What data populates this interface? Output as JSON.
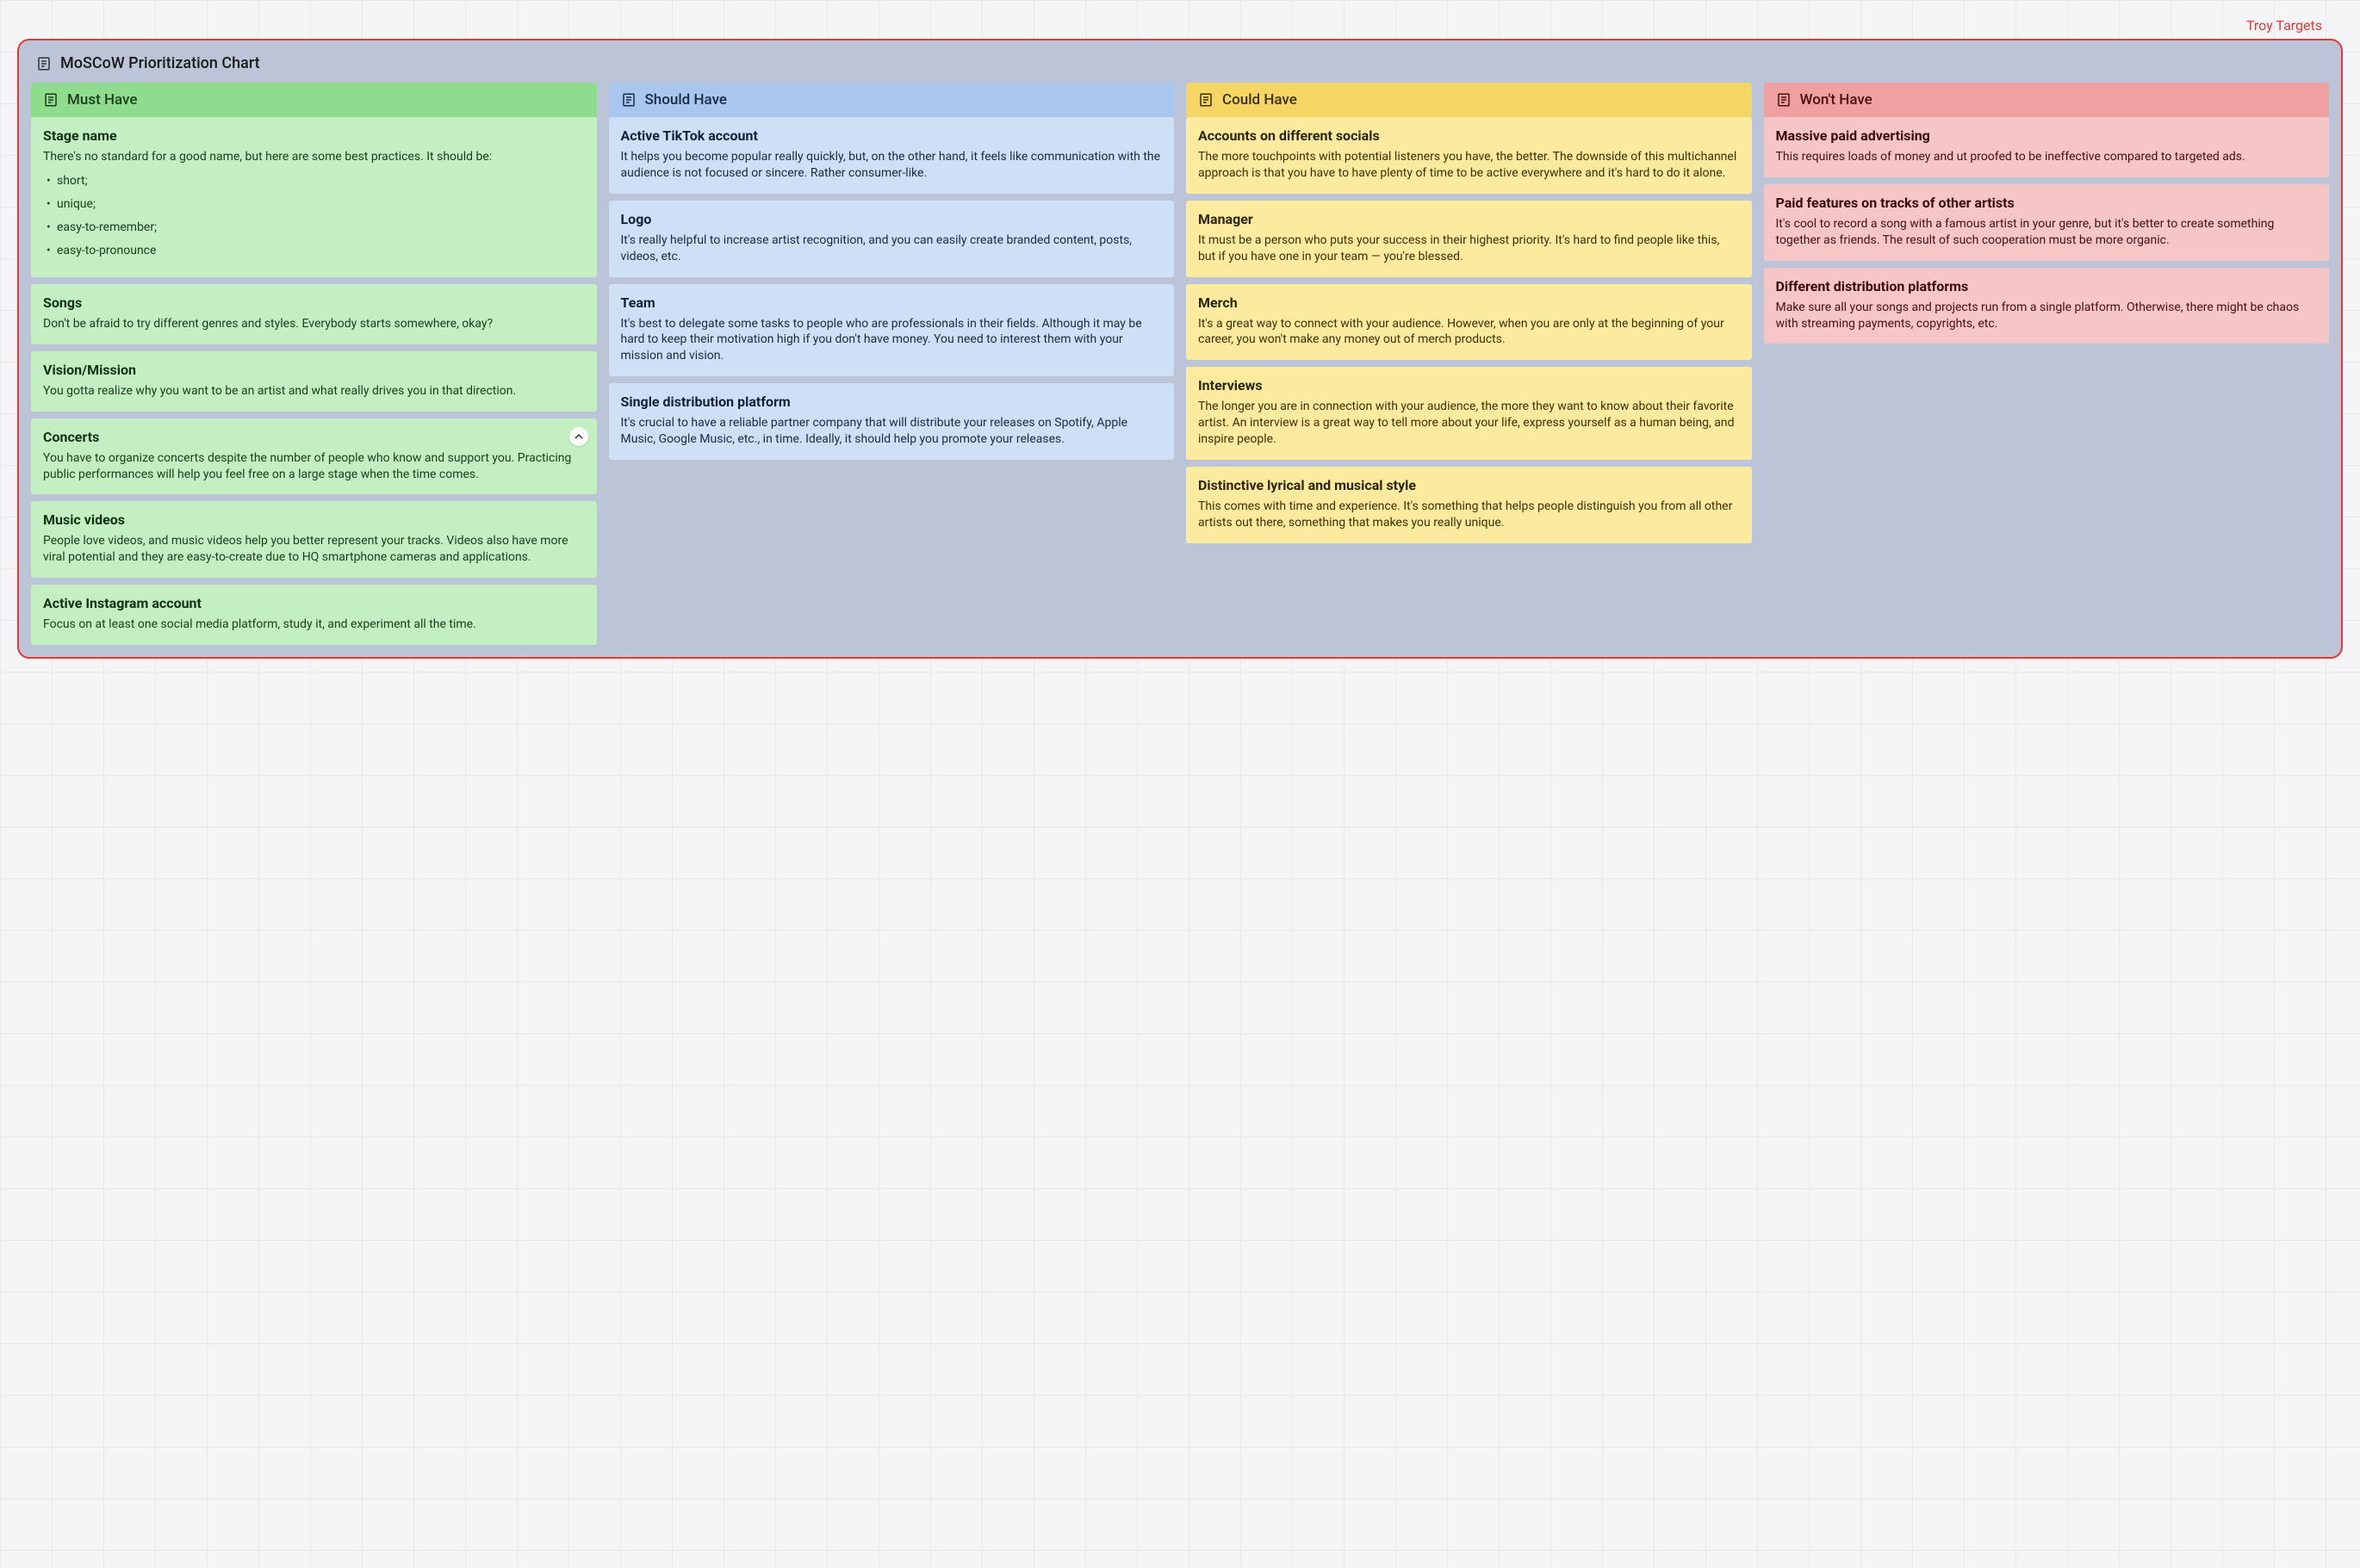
{
  "frame_label": "Troy Targets",
  "chart_title": "MoSCoW Prioritization Chart",
  "colors": {
    "frame_border": "#e53935",
    "frame_bg": "#bcc5d8",
    "must_header_bg": "#8fdc8f",
    "must_card_bg": "#c3efc3",
    "should_header_bg": "#a9c6ef",
    "should_card_bg": "#cedff6",
    "could_header_bg": "#f5d564",
    "could_card_bg": "#fcea9e",
    "wont_header_bg": "#f0a0a0",
    "wont_card_bg": "#f6c5c5"
  },
  "columns": {
    "must": {
      "header": "Must Have",
      "cards": [
        {
          "title": "Stage name",
          "desc": "There's no standard for a good name, but here are some best practices. It should be:",
          "list": [
            "short;",
            "unique;",
            "easy-to-remember;",
            "easy-to-pronounce"
          ]
        },
        {
          "title": "Songs",
          "desc": "Don't be afraid to try different genres and styles. Everybody starts somewhere, okay?"
        },
        {
          "title": "Vision/Mission",
          "desc": "You gotta realize why you want to be an artist and what really drives you in that direction."
        },
        {
          "title": "Concerts",
          "desc": "You have to organize concerts despite the number of people who know and support you. Practicing public performances will help you feel free on a large stage when the time comes.",
          "has_collapse": true
        },
        {
          "title": "Music videos",
          "desc": "People love videos, and music videos help you better represent your tracks. Videos also have more viral potential and they are easy-to-create due to HQ smartphone cameras and applications."
        },
        {
          "title": "Active Instagram account",
          "desc": "Focus on at least one social media platform, study it, and experiment all the time."
        }
      ]
    },
    "should": {
      "header": "Should Have",
      "cards": [
        {
          "title": "Active TikTok account",
          "desc": "It helps you become popular really quickly, but, on the other hand, it feels like communication with the audience is not focused or sincere. Rather consumer-like."
        },
        {
          "title": "Logo",
          "desc": "It's really helpful to increase artist recognition, and you can easily create branded content, posts, videos, etc."
        },
        {
          "title": "Team",
          "desc": "It's best to delegate some tasks to people who are professionals in their fields. Although it may be hard to keep their motivation high if you don't have money. You need to interest them with your mission and vision."
        },
        {
          "title": "Single distribution platform",
          "desc": "It's crucial to have a reliable partner company that will distribute your releases on Spotify, Apple Music, Google Music, etc., in time. Ideally, it should help you promote your releases."
        }
      ]
    },
    "could": {
      "header": "Could Have",
      "cards": [
        {
          "title": "Accounts on different socials",
          "desc": "The more touchpoints with potential listeners you have, the better. The downside of this multichannel approach is that you have to have plenty of time to be active everywhere and it's hard to do it alone."
        },
        {
          "title": "Manager",
          "desc": "It must be a person who puts your success in their highest priority. It's hard to find people like this, but if you have one in your team — you're blessed."
        },
        {
          "title": "Merch",
          "desc": "It's a great way to connect with your audience. However, when you are only at the beginning of your career, you won't make any money out of merch products."
        },
        {
          "title": "Interviews",
          "desc": "The longer you are in connection with your audience, the more they want to know about their favorite artist. An interview is a great way to tell more about your life, express yourself as a human being, and inspire people."
        },
        {
          "title": "Distinctive lyrical and musical style",
          "desc": "This comes with time and experience. It's something that helps people distinguish you from all other artists out there, something that makes you really unique."
        }
      ]
    },
    "wont": {
      "header": "Won't Have",
      "cards": [
        {
          "title": "Massive paid advertising",
          "desc": "This requires loads of money and ut proofed to be ineffective compared to targeted ads."
        },
        {
          "title": "Paid features on tracks of other artists",
          "desc": "It's cool to record a song with a famous artist in your genre, but it's better to create something together as friends. The result of such cooperation must be more organic."
        },
        {
          "title": "Different distribution platforms",
          "desc": "Make sure all your songs and projects run from a single platform. Otherwise, there might be chaos with streaming payments, copyrights, etc."
        }
      ]
    }
  }
}
